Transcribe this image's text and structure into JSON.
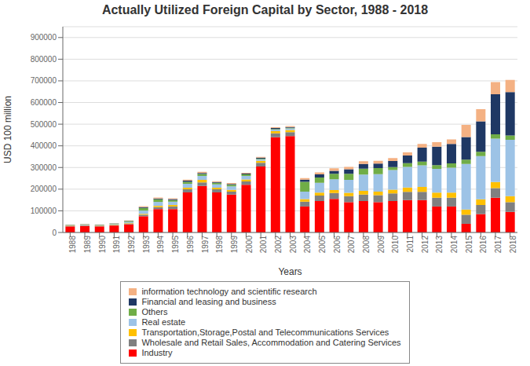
{
  "chart_data": {
    "type": "bar",
    "stacked": true,
    "grid": true,
    "legend": "bottom",
    "title": "Actually Utilized Foreign Capital by Sector, 1988 - 2018",
    "xlabel": "Years",
    "ylabel": "USD 100 million",
    "categories": [
      "1988",
      "1989",
      "1990",
      "1991",
      "1992",
      "1993",
      "1994",
      "1995",
      "1996",
      "1997",
      "1998",
      "1999",
      "2000",
      "2001",
      "2002",
      "2003",
      "2004",
      "2005",
      "2006",
      "2007",
      "2008",
      "2009",
      "2010",
      "2011",
      "2012",
      "2013",
      "2014",
      "2015",
      "2016",
      "2017",
      "2018"
    ],
    "ylim": [
      0,
      950000
    ],
    "yticks": [
      0,
      100000,
      200000,
      300000,
      400000,
      500000,
      600000,
      700000,
      800000,
      900000
    ],
    "series": [
      {
        "name": "Industry",
        "color": "#FF0000",
        "values": [
          28000,
          30000,
          28000,
          32000,
          38000,
          75000,
          108000,
          108000,
          185000,
          215000,
          185000,
          175000,
          220000,
          305000,
          440000,
          445000,
          120000,
          145000,
          155000,
          140000,
          145000,
          140000,
          145000,
          150000,
          150000,
          120000,
          120000,
          40000,
          85000,
          160000,
          95000
        ]
      },
      {
        "name": "Wholesale and Retail Sales, Accommodation and Catering Services",
        "color": "#808080",
        "values": [
          2500,
          2500,
          2500,
          2500,
          3500,
          7000,
          9000,
          12000,
          14000,
          16000,
          14000,
          14000,
          16000,
          17000,
          18000,
          18000,
          22000,
          25000,
          27000,
          28000,
          30000,
          32000,
          35000,
          38000,
          38000,
          40000,
          40000,
          42000,
          42000,
          45000,
          45000
        ]
      },
      {
        "name": "Transportation,Storage,Postal and Telecommunications Services",
        "color": "#FFC000",
        "values": [
          1500,
          1500,
          1500,
          1500,
          2000,
          4000,
          6000,
          7000,
          8000,
          12000,
          8000,
          8000,
          9000,
          9000,
          10000,
          10000,
          12000,
          14000,
          14000,
          15000,
          17000,
          17000,
          18000,
          20000,
          22000,
          24000,
          24000,
          24000,
          26000,
          28000,
          28000
        ]
      },
      {
        "name": "Real estate",
        "color": "#9DC3E6",
        "values": [
          1500,
          2000,
          2000,
          3000,
          5000,
          15000,
          18000,
          15000,
          18000,
          18000,
          15000,
          16000,
          16000,
          7000,
          7000,
          7000,
          35000,
          45000,
          50000,
          60000,
          75000,
          80000,
          90000,
          95000,
          100000,
          110000,
          115000,
          210000,
          200000,
          200000,
          260000
        ]
      },
      {
        "name": "Others",
        "color": "#70AD47",
        "values": [
          1500,
          1500,
          1500,
          2000,
          4000,
          12000,
          12000,
          8000,
          9000,
          9000,
          7000,
          7000,
          7000,
          3000,
          3000,
          3000,
          45000,
          25000,
          25000,
          28000,
          28000,
          28000,
          14000,
          17000,
          17000,
          17000,
          20000,
          20000,
          20000,
          20000,
          20000
        ]
      },
      {
        "name": "Financial and leasing and business",
        "color": "#1F3864",
        "values": [
          800,
          800,
          800,
          800,
          1500,
          4000,
          4000,
          4000,
          5000,
          5000,
          4000,
          4000,
          4000,
          4000,
          4000,
          4000,
          10000,
          14000,
          14000,
          21000,
          21000,
          21000,
          28000,
          35000,
          65000,
          85000,
          90000,
          105000,
          140000,
          185000,
          200000
        ]
      },
      {
        "name": "information technology and scientific research",
        "color": "#F4B183",
        "values": [
          700,
          700,
          700,
          700,
          1500,
          4000,
          4000,
          4000,
          5000,
          5000,
          4000,
          4000,
          4000,
          4000,
          4000,
          4000,
          7000,
          9000,
          11000,
          11000,
          13000,
          13000,
          14000,
          15000,
          17000,
          21000,
          21000,
          56000,
          56000,
          56000,
          56000
        ]
      }
    ]
  }
}
